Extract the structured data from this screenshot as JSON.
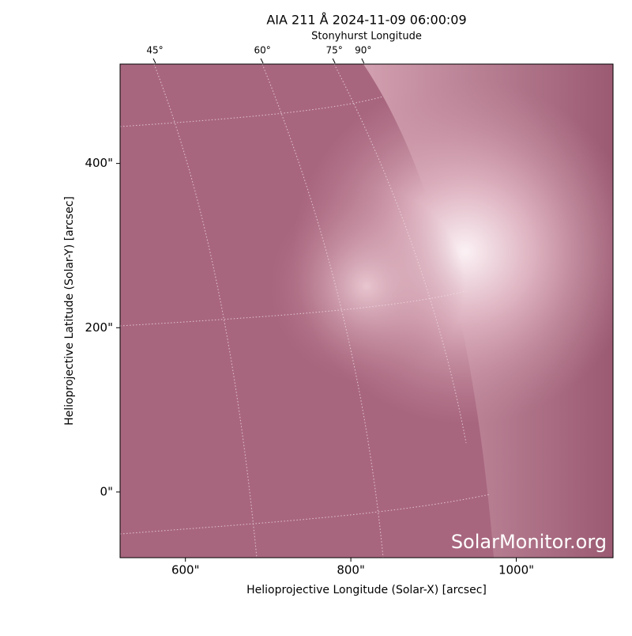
{
  "chart_data": {
    "type": "image",
    "title": "AIA 211 Å 2024-11-09 06:00:09",
    "top_axis_label": "Stonyhurst Longitude",
    "x_label": "Helioprojective Longitude (Solar-X) [arcsec]",
    "y_label": "Helioprojective Latitude (Solar-Y) [arcsec]",
    "watermark": "SolarMonitor.org",
    "xlim": [
      521,
      1117
    ],
    "ylim": [
      -80,
      521
    ],
    "xticks": [
      {
        "value": 600,
        "label": "600\""
      },
      {
        "value": 800,
        "label": "800\""
      },
      {
        "value": 1000,
        "label": "1000\""
      }
    ],
    "yticks": [
      {
        "value": 0,
        "label": "0\""
      },
      {
        "value": 200,
        "label": "200\""
      },
      {
        "value": 400,
        "label": "400\""
      }
    ],
    "top_ticks": [
      {
        "value": 45,
        "label": "45°",
        "at": 563
      },
      {
        "value": 60,
        "label": "60°",
        "at": 693
      },
      {
        "value": 75,
        "label": "75°",
        "at": 780
      },
      {
        "value": 90,
        "label": "90°",
        "at": 815
      }
    ]
  }
}
